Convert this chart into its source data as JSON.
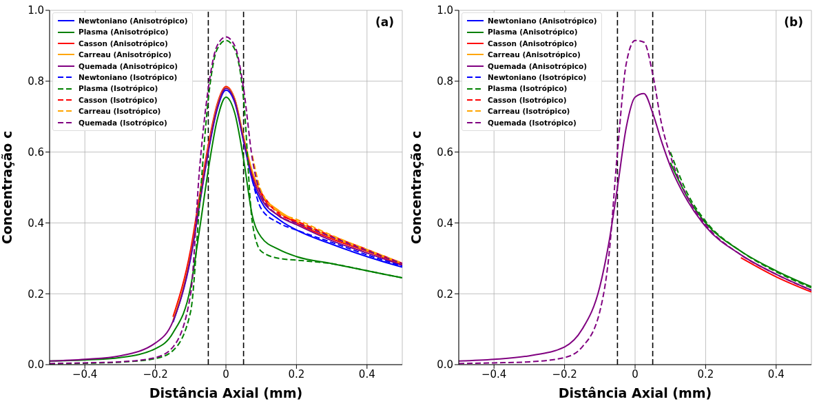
{
  "chart_data": [
    {
      "type": "line",
      "xlabel": "Distância Axial (mm)",
      "ylabel": "Concentração c",
      "annotations": [
        "(a)"
      ],
      "xlim": [
        -0.5,
        0.5
      ],
      "ylim": [
        0,
        1
      ],
      "xticks": [
        -0.4,
        -0.2,
        0,
        0.2,
        0.4
      ],
      "yticks": [
        {
          "value": 0,
          "label": "0.0"
        },
        {
          "value": 0.2,
          "label": "0.2"
        },
        {
          "value": 0.4,
          "label": "0.4"
        },
        {
          "value": 0.6,
          "label": "0.6"
        },
        {
          "value": 0.8,
          "label": "0.8"
        },
        {
          "value": 1,
          "label": "1.0"
        }
      ],
      "grid": true,
      "legend": "top left",
      "ref_lines": [
        {
          "axis": "x",
          "value": -0.05,
          "color": "#000000",
          "line_style": "dashed"
        },
        {
          "axis": "x",
          "value": 0.05,
          "color": "#000000",
          "line_style": "dashed"
        }
      ],
      "x": [
        -0.5,
        -0.4,
        -0.3,
        -0.2,
        -0.15,
        -0.1,
        -0.075,
        -0.05,
        -0.025,
        0,
        0.025,
        0.05,
        0.075,
        0.1,
        0.15,
        0.2,
        0.3,
        0.4,
        0.5
      ],
      "series": [
        {
          "name": "Newtoniano (Anisotrópico)",
          "color": "#0000ff",
          "line_style": "solid",
          "values": [
            null,
            null,
            null,
            null,
            0.12,
            0.3,
            0.45,
            0.6,
            0.72,
            0.775,
            0.74,
            0.63,
            0.52,
            0.46,
            0.41,
            0.38,
            0.34,
            0.305,
            0.275
          ]
        },
        {
          "name": "Plasma (Anisotrópico)",
          "color": "#008000",
          "line_style": "solid",
          "values": [
            0.01,
            0.013,
            0.02,
            0.045,
            0.09,
            0.22,
            0.38,
            0.55,
            0.69,
            0.755,
            0.71,
            0.58,
            0.42,
            0.36,
            0.325,
            0.305,
            0.285,
            0.265,
            0.245
          ]
        },
        {
          "name": "Casson (Anisotrópico)",
          "color": "#ff0000",
          "line_style": "solid",
          "values": [
            null,
            null,
            null,
            null,
            0.135,
            0.325,
            0.475,
            0.62,
            0.735,
            0.785,
            0.75,
            0.64,
            0.54,
            0.48,
            0.43,
            0.4,
            0.355,
            0.32,
            0.282
          ]
        },
        {
          "name": "Carreau (Anisotrópico)",
          "color": "#ffa500",
          "line_style": "solid",
          "values": [
            null,
            null,
            null,
            null,
            0.125,
            0.31,
            0.46,
            0.61,
            0.73,
            0.782,
            0.75,
            0.645,
            0.545,
            0.485,
            0.435,
            0.405,
            0.36,
            0.322,
            0.285
          ]
        },
        {
          "name": "Quemada (Anisotrópico)",
          "color": "#800080",
          "line_style": "solid",
          "values": [
            0.01,
            0.015,
            0.025,
            0.061,
            0.123,
            0.305,
            0.455,
            0.605,
            0.725,
            0.78,
            0.745,
            0.635,
            0.53,
            0.47,
            0.42,
            0.395,
            0.35,
            0.315,
            0.28
          ]
        },
        {
          "name": "Newtoniano (Isotrópico)",
          "color": "#0000ff",
          "line_style": "dashed",
          "values": [
            null,
            null,
            null,
            null,
            null,
            null,
            null,
            null,
            null,
            null,
            null,
            null,
            0.52,
            0.44,
            0.4,
            0.38,
            0.345,
            0.31,
            0.278
          ]
        },
        {
          "name": "Plasma (Isotrópico)",
          "color": "#008000",
          "line_style": "dashed",
          "values": [
            0.002,
            0.004,
            0.007,
            0.017,
            0.04,
            0.15,
            0.45,
            0.75,
            0.89,
            0.915,
            0.89,
            0.75,
            0.4,
            0.32,
            0.3,
            0.295,
            0.285,
            0.265,
            0.245
          ]
        },
        {
          "name": "Casson (Isotrópico)",
          "color": "#ff0000",
          "line_style": "dashed",
          "values": [
            null,
            null,
            null,
            null,
            null,
            null,
            null,
            null,
            null,
            null,
            null,
            null,
            null,
            0.485,
            0.425,
            0.405,
            0.363,
            0.325,
            0.286
          ]
        },
        {
          "name": "Carreau (Isotrópico)",
          "color": "#ffa500",
          "line_style": "dashed",
          "values": [
            null,
            null,
            null,
            null,
            null,
            null,
            null,
            null,
            null,
            null,
            null,
            null,
            0.59,
            0.49,
            0.43,
            0.41,
            0.365,
            0.325,
            0.287
          ]
        },
        {
          "name": "Quemada (Isotrópico)",
          "color": "#800080",
          "line_style": "dashed",
          "values": [
            0.003,
            0.005,
            0.008,
            0.02,
            0.05,
            0.2,
            0.55,
            0.78,
            0.9,
            0.925,
            0.9,
            0.78,
            0.58,
            0.48,
            0.42,
            0.4,
            0.36,
            0.322,
            0.285
          ]
        }
      ]
    },
    {
      "type": "line",
      "xlabel": "Distância Axial (mm)",
      "ylabel": "Concentração c",
      "annotations": [
        "(b)"
      ],
      "xlim": [
        -0.5,
        0.5
      ],
      "ylim": [
        0,
        1
      ],
      "xticks": [
        -0.4,
        -0.2,
        0,
        0.2,
        0.4
      ],
      "yticks": [
        {
          "value": 0,
          "label": "0.0"
        },
        {
          "value": 0.2,
          "label": "0.2"
        },
        {
          "value": 0.4,
          "label": "0.4"
        },
        {
          "value": 0.6,
          "label": "0.6"
        },
        {
          "value": 0.8,
          "label": "0.8"
        },
        {
          "value": 1,
          "label": "1.0"
        }
      ],
      "grid": true,
      "legend": "top left",
      "ref_lines": [
        {
          "axis": "x",
          "value": -0.05,
          "color": "#000000",
          "line_style": "dashed"
        },
        {
          "axis": "x",
          "value": 0.05,
          "color": "#000000",
          "line_style": "dashed"
        }
      ],
      "x": [
        -0.5,
        -0.4,
        -0.3,
        -0.2,
        -0.15,
        -0.1,
        -0.075,
        -0.05,
        -0.025,
        0,
        0.025,
        0.05,
        0.075,
        0.1,
        0.15,
        0.2,
        0.3,
        0.4,
        0.5
      ],
      "series": [
        {
          "name": "Newtoniano (Anisotrópico)",
          "color": "#0000ff",
          "line_style": "solid",
          "values": [
            null,
            null,
            null,
            null,
            null,
            null,
            null,
            null,
            null,
            null,
            null,
            null,
            null,
            null,
            null,
            null,
            null,
            null,
            null
          ]
        },
        {
          "name": "Plasma (Anisotrópico)",
          "color": "#008000",
          "line_style": "solid",
          "values": [
            null,
            null,
            null,
            null,
            null,
            null,
            null,
            null,
            null,
            null,
            null,
            null,
            null,
            0.57,
            0.47,
            0.4,
            0.32,
            0.265,
            0.22
          ]
        },
        {
          "name": "Casson (Anisotrópico)",
          "color": "#ff0000",
          "line_style": "solid",
          "values": [
            null,
            null,
            null,
            null,
            null,
            null,
            null,
            null,
            null,
            null,
            null,
            null,
            null,
            null,
            null,
            null,
            0.302,
            0.248,
            0.205
          ]
        },
        {
          "name": "Carreau (Anisotrópico)",
          "color": "#ffa500",
          "line_style": "solid",
          "values": [
            null,
            null,
            null,
            null,
            null,
            null,
            null,
            null,
            null,
            null,
            null,
            null,
            null,
            null,
            null,
            null,
            null,
            null,
            null
          ]
        },
        {
          "name": "Quemada (Anisotrópico)",
          "color": "#800080",
          "line_style": "solid",
          "values": [
            0.01,
            0.015,
            0.025,
            0.05,
            0.1,
            0.22,
            0.34,
            0.5,
            0.67,
            0.755,
            0.765,
            0.71,
            0.63,
            0.56,
            0.46,
            0.39,
            0.31,
            0.255,
            0.21
          ]
        },
        {
          "name": "Newtoniano (Isotrópico)",
          "color": "#0000ff",
          "line_style": "dashed",
          "values": [
            null,
            null,
            null,
            null,
            null,
            null,
            null,
            null,
            null,
            null,
            null,
            null,
            null,
            null,
            null,
            null,
            null,
            null,
            null
          ]
        },
        {
          "name": "Plasma (Isotrópico)",
          "color": "#008000",
          "line_style": "dashed",
          "values": [
            null,
            null,
            null,
            null,
            null,
            null,
            null,
            null,
            null,
            null,
            null,
            null,
            null,
            0.6,
            0.48,
            0.405,
            0.32,
            0.262,
            0.217
          ]
        },
        {
          "name": "Casson (Isotrópico)",
          "color": "#ff0000",
          "line_style": "dashed",
          "values": [
            null,
            null,
            null,
            null,
            null,
            null,
            null,
            null,
            null,
            null,
            null,
            null,
            null,
            null,
            null,
            null,
            null,
            null,
            null
          ]
        },
        {
          "name": "Carreau (Isotrópico)",
          "color": "#ffa500",
          "line_style": "dashed",
          "values": [
            null,
            null,
            null,
            null,
            null,
            null,
            null,
            null,
            null,
            null,
            null,
            null,
            null,
            null,
            null,
            null,
            null,
            null,
            null
          ]
        },
        {
          "name": "Quemada (Isotrópico)",
          "color": "#800080",
          "line_style": "dashed",
          "values": [
            0.003,
            0.005,
            0.008,
            0.02,
            0.05,
            0.15,
            0.3,
            0.6,
            0.85,
            0.915,
            0.91,
            0.82,
            0.68,
            0.59,
            0.47,
            0.395,
            0.31,
            0.255,
            0.21
          ]
        }
      ]
    }
  ]
}
